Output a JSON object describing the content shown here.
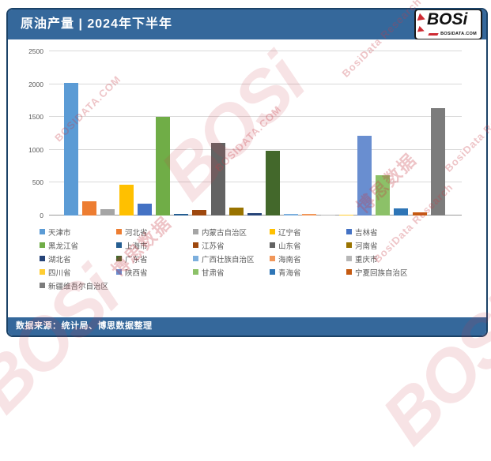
{
  "header": {
    "title": "原油产量 | 2024年下半年"
  },
  "logo": {
    "text": "BOSi",
    "subtext": "BOSIDATA.COM"
  },
  "footer": {
    "source_label": "数据来源：统计局、博思数据整理"
  },
  "watermark": {
    "brand": "BOSi",
    "domain": "BOSIDATA.COM",
    "cn": "博思数据",
    "en": "BosiData Research"
  },
  "colors": {
    "header_bg": "#35689B",
    "footer_bg": "#35689B",
    "card_border": "#1B4267",
    "accent_red": "#CE2B33",
    "axis_text": "#595959",
    "gridline": "#D9D9D9"
  },
  "chart_data": {
    "type": "bar",
    "title": "原油产量 | 2024年下半年",
    "xlabel": "",
    "ylabel": "",
    "ylim": [
      0,
      2500
    ],
    "yticks": [
      0,
      500,
      1000,
      1500,
      2000,
      2500
    ],
    "grid": true,
    "legend_position": "bottom",
    "categories": [
      "天津市",
      "河北省",
      "内蒙古自治区",
      "辽宁省",
      "吉林省",
      "黑龙江省",
      "上海市",
      "江苏省",
      "山东省",
      "河南省",
      "湖北省",
      "广东省",
      "广西壮族自治区",
      "海南省",
      "重庆市",
      "四川省",
      "陕西省",
      "甘肃省",
      "青海省",
      "宁夏回族自治区",
      "新疆维吾尔自治区"
    ],
    "values": [
      2015,
      220,
      100,
      470,
      185,
      1500,
      30,
      80,
      1110,
      120,
      35,
      985,
      20,
      25,
      15,
      10,
      1215,
      610,
      105,
      50,
      1635
    ],
    "series_colors": [
      "#5B9BD5",
      "#ED7D31",
      "#A5A5A5",
      "#FFC000",
      "#4472C4",
      "#70AD47",
      "#255E91",
      "#9E480E",
      "#636363",
      "#997300",
      "#264478",
      "#43682B",
      "#7CAFDD",
      "#F1975A",
      "#B7B7B7",
      "#FFCD33",
      "#698ED0",
      "#8CC168",
      "#2E75B6",
      "#C55A11",
      "#7C7C7C"
    ]
  }
}
